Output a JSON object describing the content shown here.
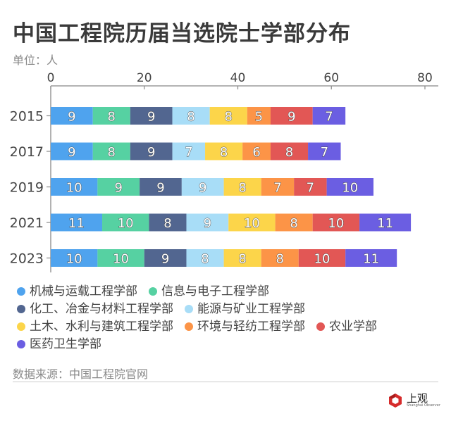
{
  "header": {
    "title": "中国工程院历届当选院士学部分布",
    "unit": "单位：人"
  },
  "chart_data": {
    "type": "bar",
    "orientation": "horizontal",
    "stacked": true,
    "title": "中国工程院历届当选院士学部分布",
    "xlabel": "",
    "ylabel": "",
    "unit": "人",
    "xlim": [
      0,
      80
    ],
    "x_ticks": [
      0,
      20,
      40,
      60,
      80
    ],
    "x_tick_labels": [
      "0",
      "20",
      "40",
      "60",
      "80"
    ],
    "categories": [
      "2015",
      "2017",
      "2019",
      "2021",
      "2023"
    ],
    "legend_position": "bottom",
    "series": [
      {
        "name": "机械与运载工程学部",
        "color": "#4FA3EE",
        "values": [
          9,
          9,
          10,
          11,
          10
        ]
      },
      {
        "name": "信息与电子工程学部",
        "color": "#56D1A2",
        "values": [
          8,
          8,
          9,
          10,
          10
        ]
      },
      {
        "name": "化工、冶金与材料工程学部",
        "color": "#526690",
        "values": [
          9,
          9,
          9,
          8,
          9
        ]
      },
      {
        "name": "能源与矿业工程学部",
        "color": "#A8DDF7",
        "values": [
          8,
          7,
          9,
          9,
          8
        ]
      },
      {
        "name": "土木、水利与建筑工程学部",
        "color": "#FCD54A",
        "values": [
          8,
          8,
          8,
          10,
          8
        ]
      },
      {
        "name": "环境与轻纺工程学部",
        "color": "#FC9447",
        "values": [
          5,
          6,
          7,
          8,
          8
        ]
      },
      {
        "name": "农业学部",
        "color": "#E25755",
        "values": [
          9,
          8,
          7,
          10,
          10
        ]
      },
      {
        "name": "医药卫生学部",
        "color": "#6B5EE2",
        "values": [
          7,
          7,
          10,
          11,
          11
        ]
      }
    ]
  },
  "footer": {
    "source": "数据来源：中国工程院官网",
    "logo_cn": "上观",
    "logo_en": "Shanghai Observer"
  }
}
